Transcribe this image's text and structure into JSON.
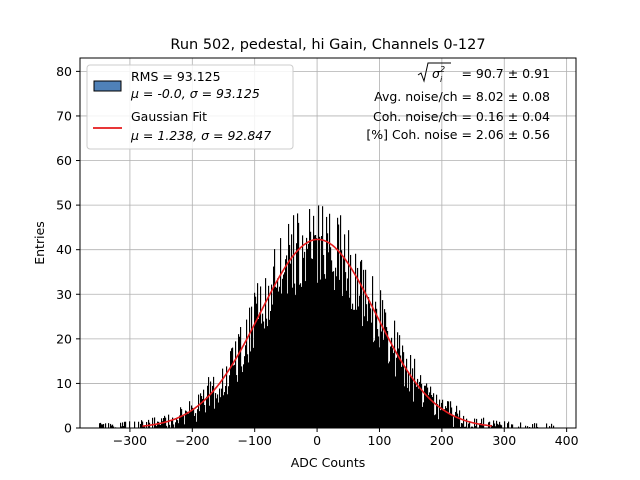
{
  "chart_data": {
    "type": "bar",
    "title": "Run 502, pedestal, hi Gain, Channels 0-127",
    "xlabel": "ADC Counts",
    "ylabel": "Entries",
    "xlim": [
      -380,
      415
    ],
    "ylim": [
      0,
      83
    ],
    "grid": true,
    "xticks": [
      -300,
      -200,
      -100,
      0,
      100,
      200,
      300,
      400
    ],
    "yticks": [
      0,
      10,
      20,
      30,
      40,
      50,
      60,
      70,
      80
    ],
    "xtick_labels": [
      "−300",
      "−200",
      "−100",
      "0",
      "100",
      "200",
      "300",
      "400"
    ],
    "ytick_labels": [
      "0",
      "10",
      "20",
      "30",
      "40",
      "50",
      "60",
      "70",
      "80"
    ],
    "histogram": {
      "name": "RMS = 93.125",
      "stats_label": "μ = -0.0, σ = 93.125",
      "mean": 0.0,
      "sigma": 93.125,
      "x_range": [
        -350,
        380
      ],
      "amplitude": 42.3,
      "fill": "#000000",
      "legend_fill": "#4f81b8",
      "seed": 502
    },
    "fit": {
      "name": "Gaussian Fit",
      "stats_label": "μ = 1.238, σ = 92.847",
      "mu": 1.238,
      "sigma": 92.847,
      "amplitude": 42.3,
      "x_range": [
        -280,
        280
      ],
      "color": "#e41a1c"
    },
    "annotations": {
      "sqrt_value": " = 90.7 ± 0.91",
      "avg_noise": "Avg. noise/ch = 8.02 ± 0.08",
      "coh_noise": "Coh. noise/ch = 0.16 ± 0.04",
      "pct_coh_noise": "[%] Coh. noise = 2.06 ± 0.56"
    },
    "legend_position": "upper-left"
  }
}
